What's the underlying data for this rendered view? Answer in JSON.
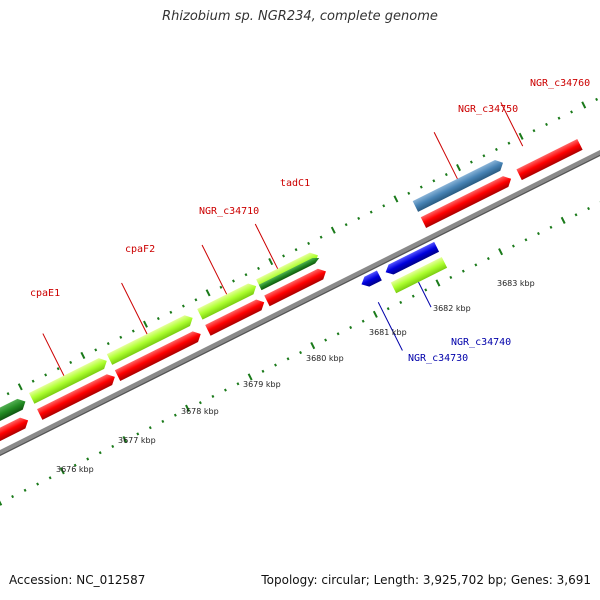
{
  "header": {
    "title": "Rhizobium sp. NGR234, complete genome"
  },
  "footer": {
    "accession": "Accession: NC_012587",
    "stats": "Topology: circular; Length: 3,925,702 bp; Genes: 3,691"
  },
  "colors": {
    "cds_forward": "#adff2f",
    "cds_forward_alt": "#228b22",
    "cds_reverse": "#ff0000",
    "cds_blue": "#0000dd",
    "cds_steel": "#4682b4",
    "backbone": "#888888",
    "tick": "#1a7a1a",
    "label_red": "#cc0000",
    "label_blue": "#0000aa"
  },
  "scale_ticks": [
    {
      "label": "3676 kbp"
    },
    {
      "label": "3677 kbp"
    },
    {
      "label": "3678 kbp"
    },
    {
      "label": "3679 kbp"
    },
    {
      "label": "3680 kbp"
    },
    {
      "label": "3681 kbp"
    },
    {
      "label": "3682 kbp"
    },
    {
      "label": "3683 kbp"
    }
  ],
  "gene_labels": [
    {
      "name": "cpaE1",
      "color": "red"
    },
    {
      "name": "cpaF2",
      "color": "red"
    },
    {
      "name": "NGR_c34710",
      "color": "red"
    },
    {
      "name": "tadC1",
      "color": "red"
    },
    {
      "name": "NGR_c34750",
      "color": "red"
    },
    {
      "name": "NGR_c34760",
      "color": "red"
    },
    {
      "name": "NGR_c34730",
      "color": "blue"
    },
    {
      "name": "NGR_c34740",
      "color": "blue"
    }
  ]
}
